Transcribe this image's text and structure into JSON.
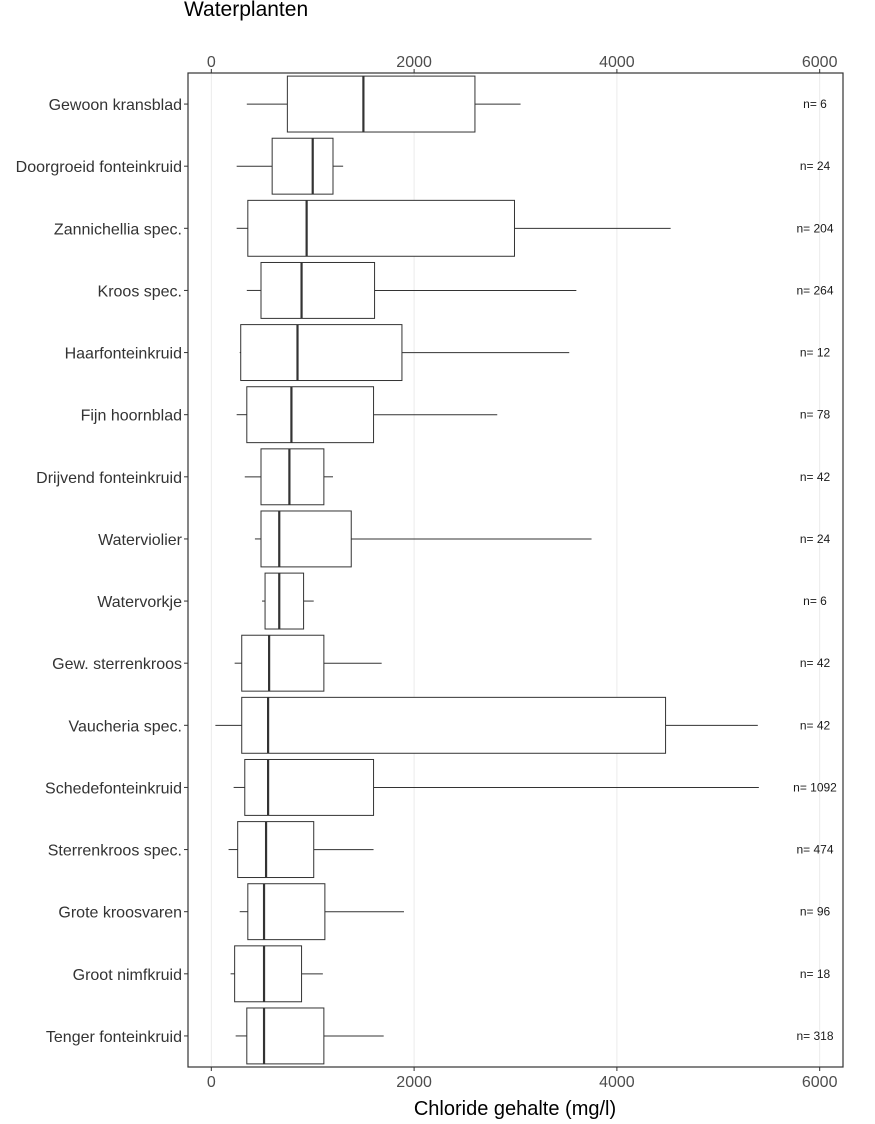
{
  "chart_data": {
    "type": "boxplot",
    "title": "Waterplanten",
    "xlabel": "Chloride gehalte (mg/l)",
    "xlim": [
      -230,
      6230
    ],
    "x_ticks": [
      0,
      2000,
      4000,
      6000
    ],
    "x_tick_labels": [
      "0",
      "2000",
      "4000",
      "6000"
    ],
    "grid": "major vertical, light grey",
    "axis_ticks_top_and_bottom": true,
    "categories": [
      "Gewoon kransblad",
      "Doorgroeid fonteinkruid",
      "Zannichellia spec.",
      "Kroos spec.",
      "Haarfonteinkruid",
      "Fijn hoornblad",
      "Drijvend fonteinkruid",
      "Waterviolier",
      "Watervorkje",
      "Gew. sterrenkroos",
      "Vaucheria spec.",
      "Schedefonteinkruid",
      "Sterrenkroos spec.",
      "Grote kroosvaren",
      "Groot nimfkruid",
      "Tenger fonteinkruid"
    ],
    "boxes": [
      {
        "whisker_low": 350,
        "q1": 750,
        "median": 1500,
        "q3": 2600,
        "whisker_high": 3050
      },
      {
        "whisker_low": 250,
        "q1": 600,
        "median": 1000,
        "q3": 1200,
        "whisker_high": 1300
      },
      {
        "whisker_low": 250,
        "q1": 360,
        "median": 940,
        "q3": 2990,
        "whisker_high": 4530
      },
      {
        "whisker_low": 350,
        "q1": 490,
        "median": 890,
        "q3": 1610,
        "whisker_high": 3600
      },
      {
        "whisker_low": 280,
        "q1": 290,
        "median": 850,
        "q3": 1880,
        "whisker_high": 3530
      },
      {
        "whisker_low": 250,
        "q1": 350,
        "median": 790,
        "q3": 1600,
        "whisker_high": 2820
      },
      {
        "whisker_low": 330,
        "q1": 490,
        "median": 770,
        "q3": 1110,
        "whisker_high": 1200
      },
      {
        "whisker_low": 430,
        "q1": 490,
        "median": 670,
        "q3": 1380,
        "whisker_high": 3750
      },
      {
        "whisker_low": 500,
        "q1": 530,
        "median": 670,
        "q3": 910,
        "whisker_high": 1010
      },
      {
        "whisker_low": 230,
        "q1": 300,
        "median": 570,
        "q3": 1110,
        "whisker_high": 1680
      },
      {
        "whisker_low": 40,
        "q1": 300,
        "median": 560,
        "q3": 4480,
        "whisker_high": 5390
      },
      {
        "whisker_low": 220,
        "q1": 330,
        "median": 560,
        "q3": 1600,
        "whisker_high": 5400
      },
      {
        "whisker_low": 170,
        "q1": 260,
        "median": 540,
        "q3": 1010,
        "whisker_high": 1600
      },
      {
        "whisker_low": 280,
        "q1": 360,
        "median": 520,
        "q3": 1120,
        "whisker_high": 1900
      },
      {
        "whisker_low": 190,
        "q1": 230,
        "median": 520,
        "q3": 890,
        "whisker_high": 1100
      },
      {
        "whisker_low": 240,
        "q1": 350,
        "median": 520,
        "q3": 1110,
        "whisker_high": 1700
      }
    ],
    "n_labels": [
      "n= 6",
      "n= 24",
      "n= 204",
      "n= 264",
      "n= 12",
      "n= 78",
      "n= 42",
      "n= 24",
      "n= 6",
      "n= 42",
      "n= 42",
      "n= 1092",
      "n= 474",
      "n= 96",
      "n= 18",
      "n= 318"
    ],
    "colors": {
      "box_fill": "#ffffff",
      "box_stroke": "#333333",
      "grid": "#ebebeb",
      "panel_border": "#333333"
    }
  }
}
